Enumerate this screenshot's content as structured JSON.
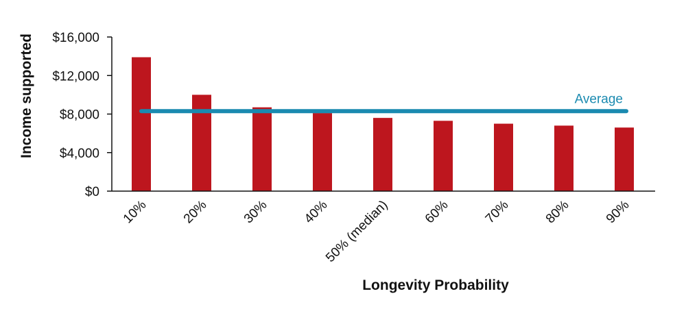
{
  "chart_data": {
    "type": "bar",
    "title": "",
    "xlabel": "Longevity Probability",
    "ylabel": "Income supported",
    "categories": [
      "10%",
      "20%",
      "30%",
      "40%",
      "50% (median)",
      "60%",
      "70%",
      "80%",
      "90%"
    ],
    "series": [
      {
        "values": [
          13900,
          10000,
          8700,
          8100,
          7600,
          7300,
          7000,
          6800,
          6600
        ]
      }
    ],
    "ylim": [
      0,
      16000
    ],
    "yticks": [
      0,
      4000,
      8000,
      12000,
      16000
    ],
    "ytick_labels": [
      "$0",
      "$4,000",
      "$8,000",
      "$12,000",
      "$16,000"
    ],
    "reference_line": {
      "label": "Average",
      "value": 8300
    },
    "grid": false,
    "legend": "none",
    "colors": {
      "bar": "#bd161e",
      "average_line": "#1a8ab0",
      "axis": "#111111"
    }
  }
}
